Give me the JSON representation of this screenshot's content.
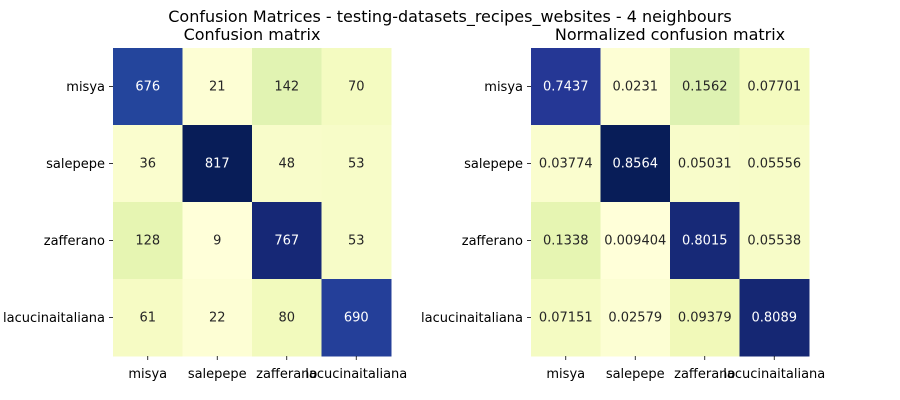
{
  "suptitle": "Confusion Matrices - testing-datasets_recipes_websites - 4 neighbours",
  "colorscale": [
    "#ffffd9",
    "#edf8b1",
    "#c7e9b4",
    "#7fcdbb",
    "#41b6c4",
    "#1d91c0",
    "#225ea8",
    "#253494",
    "#081d58"
  ],
  "text_colors": {
    "dark": "#262626",
    "light": "#ffffff"
  },
  "chart_data": [
    {
      "type": "heatmap",
      "title": "Confusion matrix",
      "x_categories": [
        "misya",
        "salepepe",
        "zafferano",
        "lacucinaitaliana"
      ],
      "y_categories": [
        "misya",
        "salepepe",
        "zafferano",
        "lacucinaitaliana"
      ],
      "values": [
        [
          676,
          21,
          142,
          70
        ],
        [
          36,
          817,
          48,
          53
        ],
        [
          128,
          9,
          767,
          53
        ],
        [
          61,
          22,
          80,
          690
        ]
      ],
      "labels": [
        [
          "676",
          "21",
          "142",
          "70"
        ],
        [
          "36",
          "817",
          "48",
          "53"
        ],
        [
          "128",
          "9",
          "767",
          "53"
        ],
        [
          "61",
          "22",
          "80",
          "690"
        ]
      ],
      "colorbar": false
    },
    {
      "type": "heatmap",
      "title": "Normalized confusion matrix",
      "x_categories": [
        "misya",
        "salepepe",
        "zafferano",
        "lacucinaitaliana"
      ],
      "y_categories": [
        "misya",
        "salepepe",
        "zafferano",
        "lacucinaitaliana"
      ],
      "values": [
        [
          0.7437,
          0.0231,
          0.1562,
          0.07701
        ],
        [
          0.03774,
          0.8564,
          0.05031,
          0.05556
        ],
        [
          0.1338,
          0.009404,
          0.8015,
          0.05538
        ],
        [
          0.07151,
          0.02579,
          0.09379,
          0.8089
        ]
      ],
      "labels": [
        [
          "0.7437",
          "0.0231",
          "0.1562",
          "0.07701"
        ],
        [
          "0.03774",
          "0.8564",
          "0.05031",
          "0.05556"
        ],
        [
          "0.1338",
          "0.009404",
          "0.8015",
          "0.05538"
        ],
        [
          "0.07151",
          "0.02579",
          "0.09379",
          "0.8089"
        ]
      ],
      "colorbar": false
    }
  ]
}
